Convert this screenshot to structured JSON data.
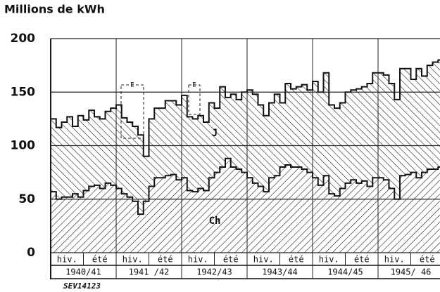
{
  "chart_data": {
    "type": "stepped-stacked-area",
    "y_label": "Millions de kWh",
    "ylim": [
      0,
      200
    ],
    "yticks": [
      0,
      50,
      100,
      150,
      200
    ],
    "grid": true,
    "seasons": [
      "hiv.",
      "été",
      "hiv.",
      "été",
      "hiv.",
      "été",
      "hiv.",
      "été",
      "hiv.",
      "été",
      "hiv.",
      "été"
    ],
    "years": [
      "1940/41",
      "1941 /42",
      "1942/43",
      "1943/44",
      "1944/45",
      "1945/ 46"
    ],
    "series": [
      {
        "name": "Ch",
        "values": [
          57,
          50,
          52,
          52,
          55,
          52,
          58,
          62,
          63,
          60,
          65,
          63,
          60,
          55,
          52,
          48,
          36,
          48,
          62,
          70,
          70,
          72,
          73,
          68,
          70,
          58,
          57,
          60,
          58,
          70,
          75,
          80,
          88,
          80,
          78,
          75,
          70,
          65,
          62,
          57,
          70,
          72,
          80,
          82,
          80,
          80,
          78,
          75,
          70,
          63,
          72,
          55,
          53,
          60,
          65,
          68,
          65,
          67,
          62,
          70,
          70,
          68,
          60,
          50,
          72,
          73,
          75,
          70,
          75,
          78,
          78,
          80
        ]
      },
      {
        "name": "J",
        "values": [
          68,
          67,
          70,
          75,
          63,
          76,
          66,
          71,
          64,
          65,
          67,
          72,
          78,
          71,
          70,
          70,
          74,
          42,
          63,
          65,
          65,
          70,
          69,
          70,
          77,
          69,
          68,
          68,
          64,
          70,
          60,
          75,
          57,
          68,
          65,
          75,
          82,
          83,
          76,
          71,
          70,
          76,
          60,
          76,
          73,
          75,
          79,
          77,
          90,
          87,
          96,
          83,
          82,
          80,
          85,
          84,
          88,
          88,
          96,
          98,
          98,
          98,
          98,
          93,
          100,
          99,
          87,
          102,
          90,
          97,
          100,
          100
        ]
      }
    ],
    "annotations": [
      "E",
      "E"
    ],
    "footnote": "SEV14123"
  }
}
